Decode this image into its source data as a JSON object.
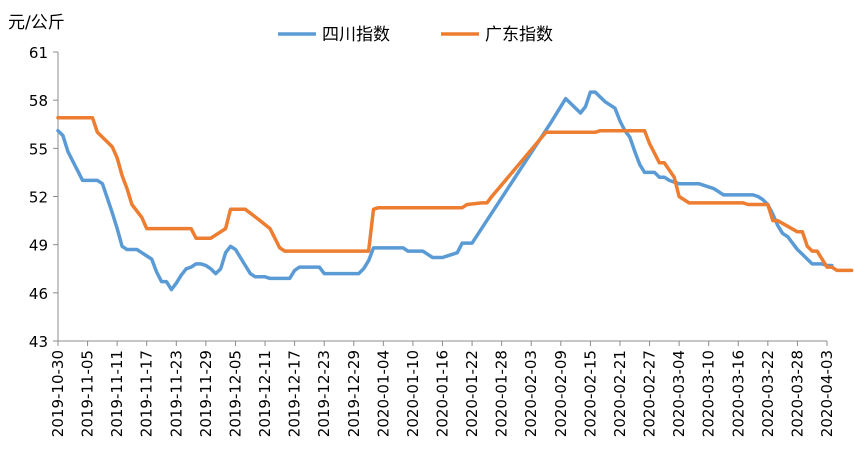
{
  "chart_data": {
    "type": "line",
    "ylabel": "元/公斤",
    "xlabel": "",
    "ylim": [
      43,
      61
    ],
    "yticks": [
      43,
      46,
      49,
      52,
      55,
      58,
      61
    ],
    "x_tick_labels": [
      "2019-10-30",
      "2019-11-05",
      "2019-11-11",
      "2019-11-17",
      "2019-11-23",
      "2019-11-29",
      "2019-12-05",
      "2019-12-11",
      "2019-12-17",
      "2019-12-23",
      "2019-12-29",
      "2020-01-04",
      "2020-01-10",
      "2020-01-16",
      "2020-01-22",
      "2020-01-28",
      "2020-02-03",
      "2020-02-09",
      "2020-02-15",
      "2020-02-21",
      "2020-02-27",
      "2020-03-04",
      "2020-03-10",
      "2020-03-16",
      "2020-03-22",
      "2020-03-28",
      "2020-04-03"
    ],
    "x_start": "2019-10-30",
    "x_end": "2020-04-03",
    "grid": false,
    "legend": "top-center",
    "series": [
      {
        "name": "四川指数",
        "color": "#5B9BD5",
        "points": [
          [
            "2019-10-30",
            56.1
          ],
          [
            "2019-10-31",
            55.8
          ],
          [
            "2019-11-01",
            54.8
          ],
          [
            "2019-11-02",
            54.2
          ],
          [
            "2019-11-03",
            53.6
          ],
          [
            "2019-11-04",
            53.0
          ],
          [
            "2019-11-05",
            53.0
          ],
          [
            "2019-11-06",
            53.0
          ],
          [
            "2019-11-07",
            53.0
          ],
          [
            "2019-11-08",
            52.8
          ],
          [
            "2019-11-09",
            51.9
          ],
          [
            "2019-11-10",
            51.0
          ],
          [
            "2019-11-11",
            50.0
          ],
          [
            "2019-11-12",
            48.9
          ],
          [
            "2019-11-13",
            48.7
          ],
          [
            "2019-11-14",
            48.7
          ],
          [
            "2019-11-15",
            48.7
          ],
          [
            "2019-11-16",
            48.5
          ],
          [
            "2019-11-17",
            48.3
          ],
          [
            "2019-11-18",
            48.1
          ],
          [
            "2019-11-19",
            47.3
          ],
          [
            "2019-11-20",
            46.7
          ],
          [
            "2019-11-21",
            46.7
          ],
          [
            "2019-11-22",
            46.2
          ],
          [
            "2019-11-23",
            46.6
          ],
          [
            "2019-11-24",
            47.1
          ],
          [
            "2019-11-25",
            47.5
          ],
          [
            "2019-11-26",
            47.6
          ],
          [
            "2019-11-27",
            47.8
          ],
          [
            "2019-11-28",
            47.8
          ],
          [
            "2019-11-29",
            47.7
          ],
          [
            "2019-11-30",
            47.5
          ],
          [
            "2019-12-01",
            47.2
          ],
          [
            "2019-12-02",
            47.5
          ],
          [
            "2019-12-03",
            48.5
          ],
          [
            "2019-12-04",
            48.9
          ],
          [
            "2019-12-05",
            48.7
          ],
          [
            "2019-12-06",
            48.2
          ],
          [
            "2019-12-07",
            47.7
          ],
          [
            "2019-12-08",
            47.2
          ],
          [
            "2019-12-09",
            47.0
          ],
          [
            "2019-12-10",
            47.0
          ],
          [
            "2019-12-11",
            47.0
          ],
          [
            "2019-12-12",
            46.9
          ],
          [
            "2019-12-13",
            46.9
          ],
          [
            "2019-12-14",
            46.9
          ],
          [
            "2019-12-15",
            46.9
          ],
          [
            "2019-12-16",
            46.9
          ],
          [
            "2019-12-17",
            47.4
          ],
          [
            "2019-12-18",
            47.6
          ],
          [
            "2019-12-19",
            47.6
          ],
          [
            "2019-12-20",
            47.6
          ],
          [
            "2019-12-21",
            47.6
          ],
          [
            "2019-12-22",
            47.6
          ],
          [
            "2019-12-23",
            47.2
          ],
          [
            "2019-12-24",
            47.2
          ],
          [
            "2019-12-25",
            47.2
          ],
          [
            "2019-12-26",
            47.2
          ],
          [
            "2019-12-27",
            47.2
          ],
          [
            "2019-12-28",
            47.2
          ],
          [
            "2019-12-29",
            47.2
          ],
          [
            "2019-12-30",
            47.2
          ],
          [
            "2019-12-31",
            47.5
          ],
          [
            "2020-01-01",
            48.0
          ],
          [
            "2020-01-02",
            48.8
          ],
          [
            "2020-01-03",
            48.8
          ],
          [
            "2020-01-04",
            48.8
          ],
          [
            "2020-01-05",
            48.8
          ],
          [
            "2020-01-06",
            48.8
          ],
          [
            "2020-01-07",
            48.8
          ],
          [
            "2020-01-08",
            48.8
          ],
          [
            "2020-01-09",
            48.6
          ],
          [
            "2020-01-10",
            48.6
          ],
          [
            "2020-01-11",
            48.6
          ],
          [
            "2020-01-12",
            48.6
          ],
          [
            "2020-01-13",
            48.4
          ],
          [
            "2020-01-14",
            48.2
          ],
          [
            "2020-01-15",
            48.2
          ],
          [
            "2020-01-16",
            48.2
          ],
          [
            "2020-01-17",
            48.3
          ],
          [
            "2020-01-18",
            48.4
          ],
          [
            "2020-01-19",
            48.5
          ],
          [
            "2020-01-20",
            49.1
          ],
          [
            "2020-01-21",
            49.1
          ],
          [
            "2020-01-22",
            49.1
          ],
          [
            "2020-02-07",
            56.6
          ],
          [
            "2020-02-10",
            58.1
          ],
          [
            "2020-02-13",
            57.2
          ],
          [
            "2020-02-14",
            57.6
          ],
          [
            "2020-02-15",
            58.5
          ],
          [
            "2020-02-16",
            58.5
          ],
          [
            "2020-02-17",
            58.2
          ],
          [
            "2020-02-18",
            57.9
          ],
          [
            "2020-02-20",
            57.5
          ],
          [
            "2020-02-21",
            56.7
          ],
          [
            "2020-02-22",
            56.1
          ],
          [
            "2020-02-23",
            55.7
          ],
          [
            "2020-02-24",
            54.8
          ],
          [
            "2020-02-25",
            54.0
          ],
          [
            "2020-02-26",
            53.5
          ],
          [
            "2020-02-27",
            53.5
          ],
          [
            "2020-02-28",
            53.5
          ],
          [
            "2020-02-29",
            53.2
          ],
          [
            "2020-03-01",
            53.2
          ],
          [
            "2020-03-02",
            53.0
          ],
          [
            "2020-03-03",
            52.9
          ],
          [
            "2020-03-04",
            52.8
          ],
          [
            "2020-03-05",
            52.8
          ],
          [
            "2020-03-06",
            52.8
          ],
          [
            "2020-03-07",
            52.8
          ],
          [
            "2020-03-08",
            52.8
          ],
          [
            "2020-03-09",
            52.7
          ],
          [
            "2020-03-10",
            52.6
          ],
          [
            "2020-03-11",
            52.5
          ],
          [
            "2020-03-12",
            52.3
          ],
          [
            "2020-03-13",
            52.1
          ],
          [
            "2020-03-14",
            52.1
          ],
          [
            "2020-03-15",
            52.1
          ],
          [
            "2020-03-16",
            52.1
          ],
          [
            "2020-03-17",
            52.1
          ],
          [
            "2020-03-18",
            52.1
          ],
          [
            "2020-03-19",
            52.1
          ],
          [
            "2020-03-20",
            52.0
          ],
          [
            "2020-03-21",
            51.8
          ],
          [
            "2020-03-22",
            51.5
          ],
          [
            "2020-03-23",
            50.9
          ],
          [
            "2020-03-24",
            50.2
          ],
          [
            "2020-03-25",
            49.7
          ],
          [
            "2020-03-26",
            49.5
          ],
          [
            "2020-03-27",
            49.1
          ],
          [
            "2020-03-28",
            48.7
          ],
          [
            "2020-03-29",
            48.4
          ],
          [
            "2020-03-30",
            48.1
          ],
          [
            "2020-03-31",
            47.8
          ],
          [
            "2020-04-01",
            47.8
          ],
          [
            "2020-04-02",
            47.8
          ],
          [
            "2020-04-03",
            47.7
          ],
          [
            "2020-04-04",
            47.7
          ]
        ]
      },
      {
        "name": "广东指数",
        "color": "#ED7D31",
        "points": [
          [
            "2019-10-30",
            56.9
          ],
          [
            "2019-11-06",
            56.9
          ],
          [
            "2019-11-07",
            56.0
          ],
          [
            "2019-11-10",
            55.1
          ],
          [
            "2019-11-11",
            54.4
          ],
          [
            "2019-11-12",
            53.3
          ],
          [
            "2019-11-13",
            52.5
          ],
          [
            "2019-11-14",
            51.5
          ],
          [
            "2019-11-16",
            50.7
          ],
          [
            "2019-11-17",
            50.0
          ],
          [
            "2019-11-26",
            50.0
          ],
          [
            "2019-11-27",
            49.4
          ],
          [
            "2019-11-30",
            49.4
          ],
          [
            "2019-12-03",
            50.0
          ],
          [
            "2019-12-04",
            51.2
          ],
          [
            "2019-12-07",
            51.2
          ],
          [
            "2019-12-10",
            50.5
          ],
          [
            "2019-12-12",
            50.0
          ],
          [
            "2019-12-14",
            48.8
          ],
          [
            "2019-12-15",
            48.6
          ],
          [
            "2019-12-16",
            48.6
          ],
          [
            "2019-12-31",
            48.6
          ],
          [
            "2020-01-01",
            48.6
          ],
          [
            "2020-01-02",
            51.2
          ],
          [
            "2020-01-03",
            51.3
          ],
          [
            "2020-01-20",
            51.3
          ],
          [
            "2020-01-21",
            51.5
          ],
          [
            "2020-01-24",
            51.6
          ],
          [
            "2020-01-25",
            51.6
          ],
          [
            "2020-01-26",
            52.0
          ],
          [
            "2020-02-06",
            56.0
          ],
          [
            "2020-02-16",
            56.0
          ],
          [
            "2020-02-17",
            56.1
          ],
          [
            "2020-02-26",
            56.1
          ],
          [
            "2020-02-27",
            55.3
          ],
          [
            "2020-02-29",
            54.1
          ],
          [
            "2020-03-01",
            54.1
          ],
          [
            "2020-03-03",
            53.2
          ],
          [
            "2020-03-04",
            52.0
          ],
          [
            "2020-03-06",
            51.6
          ],
          [
            "2020-03-17",
            51.6
          ],
          [
            "2020-03-18",
            51.5
          ],
          [
            "2020-03-22",
            51.5
          ],
          [
            "2020-03-23",
            50.5
          ],
          [
            "2020-03-24",
            50.5
          ],
          [
            "2020-03-28",
            49.8
          ],
          [
            "2020-03-29",
            49.8
          ],
          [
            "2020-03-30",
            48.9
          ],
          [
            "2020-03-31",
            48.6
          ],
          [
            "2020-04-01",
            48.6
          ],
          [
            "2020-04-03",
            47.6
          ],
          [
            "2020-04-04",
            47.6
          ],
          [
            "2020-04-05",
            47.4
          ],
          [
            "2020-04-08",
            47.4
          ]
        ]
      }
    ]
  }
}
